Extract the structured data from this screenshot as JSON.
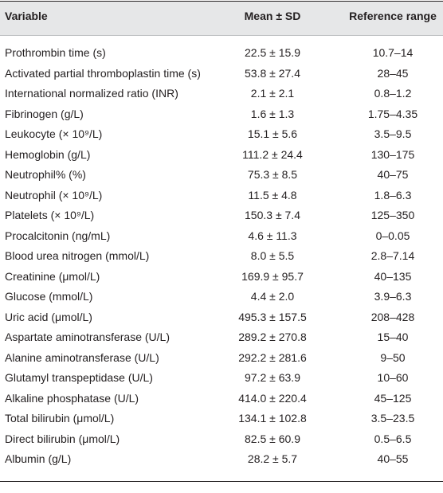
{
  "table": {
    "header": [
      "Variable",
      "Mean ± SD",
      "Reference range"
    ],
    "rows": [
      [
        "Prothrombin time (s)",
        "22.5 ± 15.9",
        "10.7–14"
      ],
      [
        "Activated partial thromboplastin time (s)",
        "53.8 ± 27.4",
        "28–45"
      ],
      [
        "International normalized ratio (INR)",
        "2.1 ± 2.1",
        "0.8–1.2"
      ],
      [
        "Fibrinogen (g/L)",
        "1.6 ± 1.3",
        "1.75–4.35"
      ],
      [
        "Leukocyte (× 10⁹/L)",
        "15.1 ± 5.6",
        "3.5–9.5"
      ],
      [
        "Hemoglobin (g/L)",
        "111.2 ± 24.4",
        "130–175"
      ],
      [
        "Neutrophil% (%)",
        "75.3 ± 8.5",
        "40–75"
      ],
      [
        "Neutrophil (× 10⁹/L)",
        "11.5 ± 4.8",
        "1.8–6.3"
      ],
      [
        "Platelets (× 10⁹/L)",
        "150.3 ± 7.4",
        "125–350"
      ],
      [
        "Procalcitonin (ng/mL)",
        "4.6 ± 11.3",
        "0–0.05"
      ],
      [
        "Blood urea nitrogen (mmol/L)",
        "8.0 ± 5.5",
        "2.8–7.14"
      ],
      [
        "Creatinine (μmol/L)",
        "169.9 ± 95.7",
        "40–135"
      ],
      [
        "Glucose (mmol/L)",
        "4.4 ± 2.0",
        "3.9–6.3"
      ],
      [
        "Uric acid (μmol/L)",
        "495.3 ± 157.5",
        "208–428"
      ],
      [
        "Aspartate aminotransferase (U/L)",
        "289.2 ± 270.8",
        "15–40"
      ],
      [
        "Alanine aminotransferase (U/L)",
        "292.2 ± 281.6",
        "9–50"
      ],
      [
        "Glutamyl transpeptidase (U/L)",
        "97.2 ± 63.9",
        "10–60"
      ],
      [
        "Alkaline phosphatase (U/L)",
        "414.0 ± 220.4",
        "45–125"
      ],
      [
        "Total bilirubin (μmol/L)",
        "134.1 ± 102.8",
        "3.5–23.5"
      ],
      [
        "Direct bilirubin (μmol/L)",
        "82.5 ± 60.9",
        "0.5–6.5"
      ],
      [
        "Albumin (g/L)",
        "28.2 ± 5.7",
        "40–55"
      ]
    ]
  }
}
